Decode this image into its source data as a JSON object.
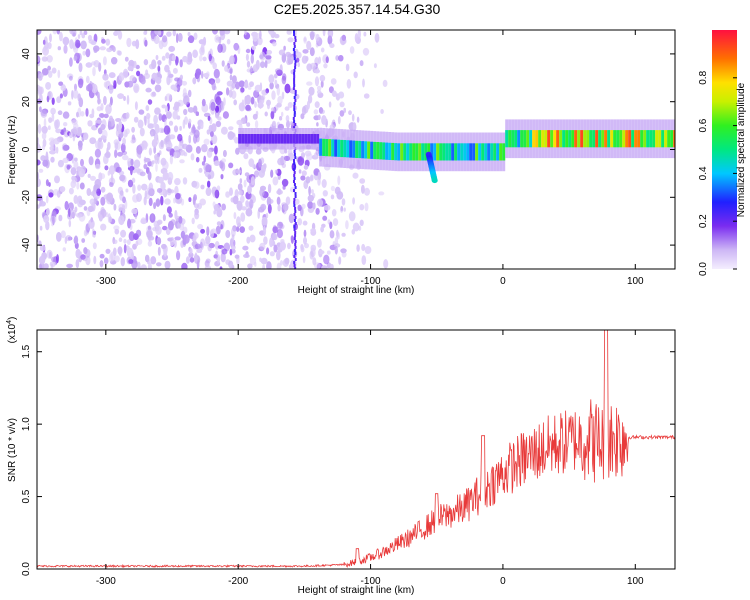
{
  "title": "C2E5.2025.357.14.54.G30",
  "chart_data": [
    {
      "type": "heatmap",
      "title": "C2E5.2025.357.14.54.G30",
      "xlabel": "Height of straight line (km)",
      "ylabel": "Frequency (Hz)",
      "xlim": [
        -352,
        130
      ],
      "ylim": [
        -50,
        50
      ],
      "xticks": [
        -300,
        -200,
        -100,
        0,
        100
      ],
      "yticks": [
        -40,
        -20,
        0,
        20,
        40
      ],
      "colorbar": {
        "label": "Normalized spectral amplitude",
        "range": [
          0.0,
          1.0
        ],
        "ticks": [
          0.0,
          0.2,
          0.4,
          0.6,
          0.8
        ],
        "tick_labels": [
          "0.0",
          "0.2",
          "0.4",
          "0.6",
          "0.8"
        ]
      },
      "features": {
        "noise_region_x": [
          -352,
          -115
        ],
        "vertical_line_x": -158,
        "band_center_hz": 0,
        "band_start_x": -140,
        "dip_x": -50,
        "dip_min_hz": -13
      }
    },
    {
      "type": "line",
      "title": "",
      "xlabel": "Height of straight line (km)",
      "ylabel": "SNR (10 * v/v)",
      "scale_label": "(x10",
      "scale_exponent": "4",
      "xlim": [
        -352,
        130
      ],
      "ylim": [
        0,
        1.65
      ],
      "xticks": [
        -300,
        -200,
        -100,
        0,
        100
      ],
      "yticks": [
        0.0,
        0.5,
        1.0,
        1.5
      ],
      "ytick_labels": [
        "0.0",
        "0.5",
        "1.0",
        "1.5"
      ],
      "series": [
        {
          "name": "SNR",
          "color": "#e83a3a",
          "x": [
            -352,
            -300,
            -250,
            -200,
            -150,
            -120,
            -110,
            -100,
            -90,
            -80,
            -70,
            -60,
            -50,
            -40,
            -30,
            -20,
            -10,
            0,
            10,
            20,
            30,
            40,
            50,
            55,
            60,
            65,
            70,
            75,
            80,
            85,
            90,
            100,
            110,
            120,
            130
          ],
          "y": [
            0.02,
            0.02,
            0.02,
            0.02,
            0.02,
            0.03,
            0.05,
            0.08,
            0.12,
            0.17,
            0.22,
            0.28,
            0.34,
            0.38,
            0.42,
            0.5,
            0.58,
            0.66,
            0.73,
            0.78,
            0.83,
            0.86,
            0.88,
            0.9,
            0.9,
            0.91,
            0.88,
            0.88,
            0.9,
            0.91,
            0.91,
            0.91,
            0.91,
            0.91,
            0.91
          ]
        }
      ],
      "peaks": [
        {
          "x": -110,
          "y": 0.14
        },
        {
          "x": -50,
          "y": 0.52
        },
        {
          "x": -15,
          "y": 0.92
        },
        {
          "x": 78,
          "y": 1.65
        }
      ]
    }
  ]
}
